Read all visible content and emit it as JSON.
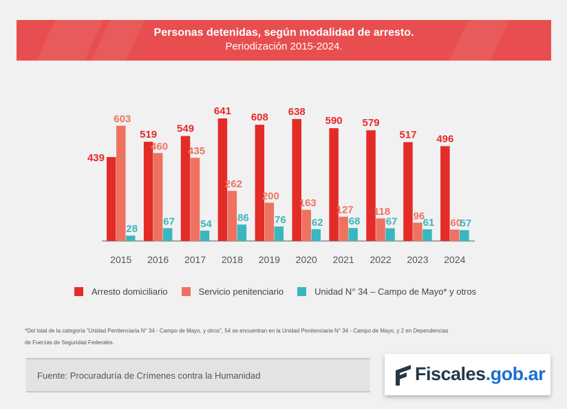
{
  "header": {
    "title": "Personas detenidas, según modalidad de arresto.",
    "subtitle": "Periodización 2015-2024."
  },
  "chart_data": {
    "type": "bar",
    "categories": [
      "2015",
      "2016",
      "2017",
      "2018",
      "2019",
      "2020",
      "2021",
      "2022",
      "2023",
      "2024"
    ],
    "series": [
      {
        "name": "Arresto domiciliario",
        "color": "#e32b28",
        "values": [
          439,
          519,
          549,
          641,
          608,
          638,
          590,
          579,
          517,
          496
        ]
      },
      {
        "name": "Servicio penitenciario",
        "color": "#ef7261",
        "values": [
          603,
          460,
          435,
          262,
          200,
          163,
          127,
          118,
          96,
          60
        ]
      },
      {
        "name": "Unidad N° 34 – Campo de Mayo* y otros",
        "color": "#39b7bf",
        "values": [
          28,
          67,
          54,
          86,
          76,
          62,
          68,
          67,
          61,
          57
        ]
      }
    ],
    "ylim": [
      0,
      641
    ],
    "grid": false,
    "legend": "bottom"
  },
  "footnote": {
    "line1": "*Del total de la categoría \"Unidad Penitenciaria N° 34 - Campo de Mayo, y otros\", 54 se encuentran en la Unidad Penitenciaria N° 34 - Campo de Mayo, y 2 en Dependencias",
    "line2": "de Fuerzas de Seguridad Federales."
  },
  "source": "Fuente: Procuraduría de Crímenes contra la Humanidad",
  "logo": {
    "part1": "Fiscales",
    "part2": ".gob.ar"
  }
}
